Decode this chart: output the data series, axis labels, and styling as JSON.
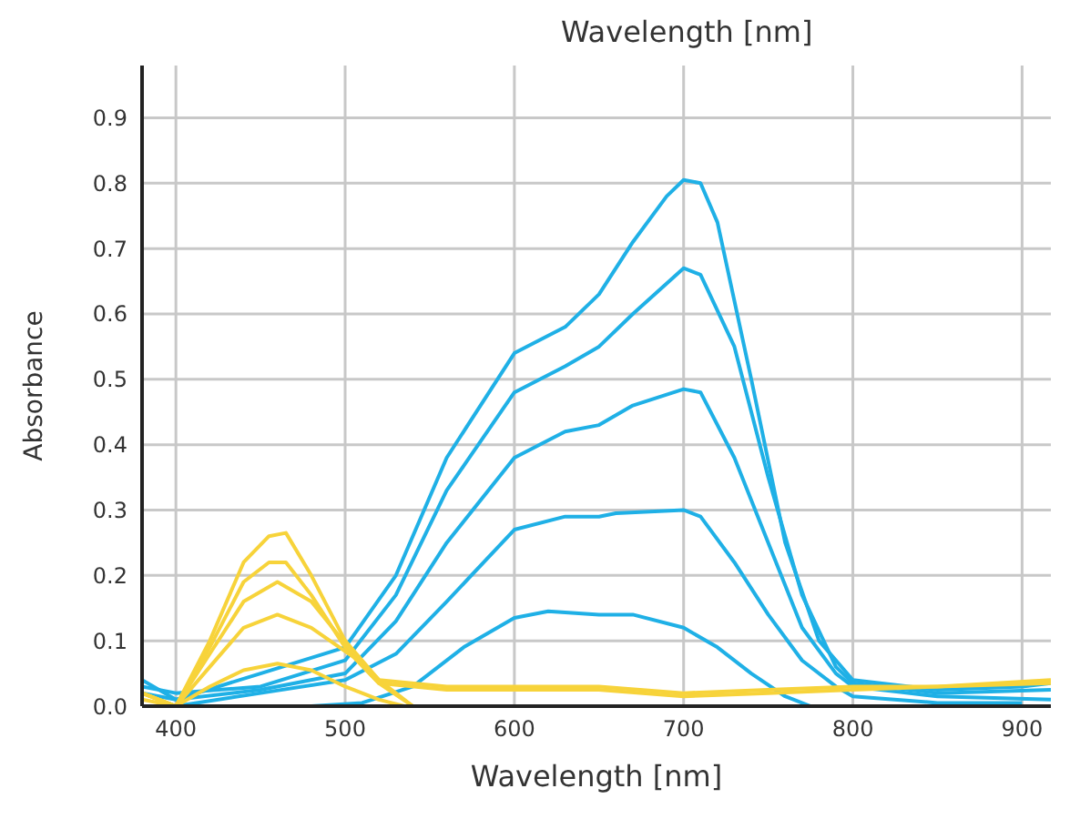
{
  "chart_data": {
    "type": "line",
    "title": "Wavelength [nm]",
    "xlabel": "Wavelength [nm]",
    "ylabel": "Absorbance",
    "xlim": [
      380,
      917
    ],
    "xticks": [
      400,
      500,
      600,
      700,
      800,
      900
    ],
    "ylim": [
      0,
      0.98
    ],
    "yticks": [
      {
        "value": 0,
        "label": "0.0"
      },
      0.1,
      0.2,
      0.3,
      0.4,
      0.5,
      0.6,
      0.7,
      0.8,
      0.9
    ],
    "grid": true,
    "marker": "none",
    "line_style": "solid",
    "series": [
      {
        "color": "#1fb0e6",
        "x": [
          380,
          400,
          450,
          500,
          530,
          560,
          600,
          630,
          650,
          670,
          690,
          700,
          710,
          720,
          740,
          760,
          780,
          800,
          850,
          900,
          917
        ],
        "values": [
          0.04,
          0.01,
          0.05,
          0.09,
          0.2,
          0.38,
          0.54,
          0.58,
          0.63,
          0.71,
          0.78,
          0.805,
          0.8,
          0.74,
          0.5,
          0.25,
          0.1,
          0.04,
          0.025,
          0.03,
          0.035
        ]
      },
      {
        "color": "#1fb0e6",
        "x": [
          380,
          400,
          450,
          500,
          530,
          560,
          600,
          630,
          650,
          670,
          700,
          710,
          730,
          750,
          770,
          790,
          800,
          850,
          917
        ],
        "values": [
          0.03,
          0.02,
          0.03,
          0.07,
          0.17,
          0.33,
          0.48,
          0.52,
          0.55,
          0.6,
          0.67,
          0.66,
          0.55,
          0.35,
          0.17,
          0.06,
          0.035,
          0.02,
          0.025
        ]
      },
      {
        "color": "#1fb0e6",
        "x": [
          380,
          400,
          450,
          500,
          530,
          560,
          600,
          630,
          650,
          670,
          700,
          710,
          730,
          750,
          770,
          790,
          800,
          850,
          917
        ],
        "values": [
          0.02,
          0.01,
          0.025,
          0.05,
          0.13,
          0.25,
          0.38,
          0.42,
          0.43,
          0.46,
          0.485,
          0.48,
          0.38,
          0.25,
          0.12,
          0.05,
          0.03,
          0.015,
          0.01
        ]
      },
      {
        "color": "#1fb0e6",
        "x": [
          390,
          400,
          450,
          500,
          530,
          560,
          600,
          630,
          650,
          660,
          700,
          710,
          730,
          750,
          770,
          790,
          800,
          850,
          900
        ],
        "values": [
          0.01,
          0,
          0.02,
          0.04,
          0.08,
          0.16,
          0.27,
          0.29,
          0.29,
          0.295,
          0.3,
          0.29,
          0.22,
          0.14,
          0.07,
          0.03,
          0.015,
          0.005,
          0.005
        ]
      },
      {
        "color": "#1fb0e6",
        "x": [
          480,
          510,
          540,
          570,
          600,
          620,
          650,
          670,
          700,
          720,
          740,
          760,
          775
        ],
        "values": [
          0,
          0.005,
          0.03,
          0.09,
          0.135,
          0.145,
          0.14,
          0.14,
          0.12,
          0.09,
          0.05,
          0.015,
          0
        ]
      },
      {
        "color": "#f7d33a",
        "x": [
          380,
          400,
          420,
          440,
          455,
          465,
          480,
          500,
          520,
          540
        ],
        "values": [
          0.02,
          0,
          0.1,
          0.22,
          0.26,
          0.265,
          0.2,
          0.1,
          0.04,
          0
        ]
      },
      {
        "color": "#f7d33a",
        "x": [
          380,
          400,
          420,
          440,
          455,
          465,
          480,
          500,
          520,
          540
        ],
        "values": [
          0.02,
          0,
          0.09,
          0.19,
          0.22,
          0.22,
          0.17,
          0.09,
          0.035,
          0
        ]
      },
      {
        "color": "#f7d33a",
        "x": [
          380,
          400,
          420,
          440,
          460,
          480,
          505,
          520,
          560,
          600,
          650,
          700,
          750,
          800,
          850,
          917
        ],
        "values": [
          0.02,
          0,
          0.08,
          0.16,
          0.19,
          0.16,
          0.08,
          0.04,
          0.03,
          0.03,
          0.03,
          0.02,
          0.025,
          0.03,
          0.03,
          0.04
        ]
      },
      {
        "color": "#f7d33a",
        "x": [
          380,
          400,
          420,
          440,
          460,
          480,
          505,
          520,
          560,
          600,
          650,
          700,
          750,
          800,
          850,
          917
        ],
        "values": [
          0.02,
          0,
          0.06,
          0.12,
          0.14,
          0.12,
          0.075,
          0.035,
          0.025,
          0.025,
          0.025,
          0.015,
          0.02,
          0.025,
          0.03,
          0.035
        ]
      },
      {
        "color": "#f7d33a",
        "x": [
          380,
          400,
          420,
          440,
          460,
          480,
          500,
          520,
          535
        ],
        "values": [
          0.01,
          0,
          0.03,
          0.055,
          0.065,
          0.055,
          0.03,
          0.01,
          0
        ]
      }
    ]
  }
}
